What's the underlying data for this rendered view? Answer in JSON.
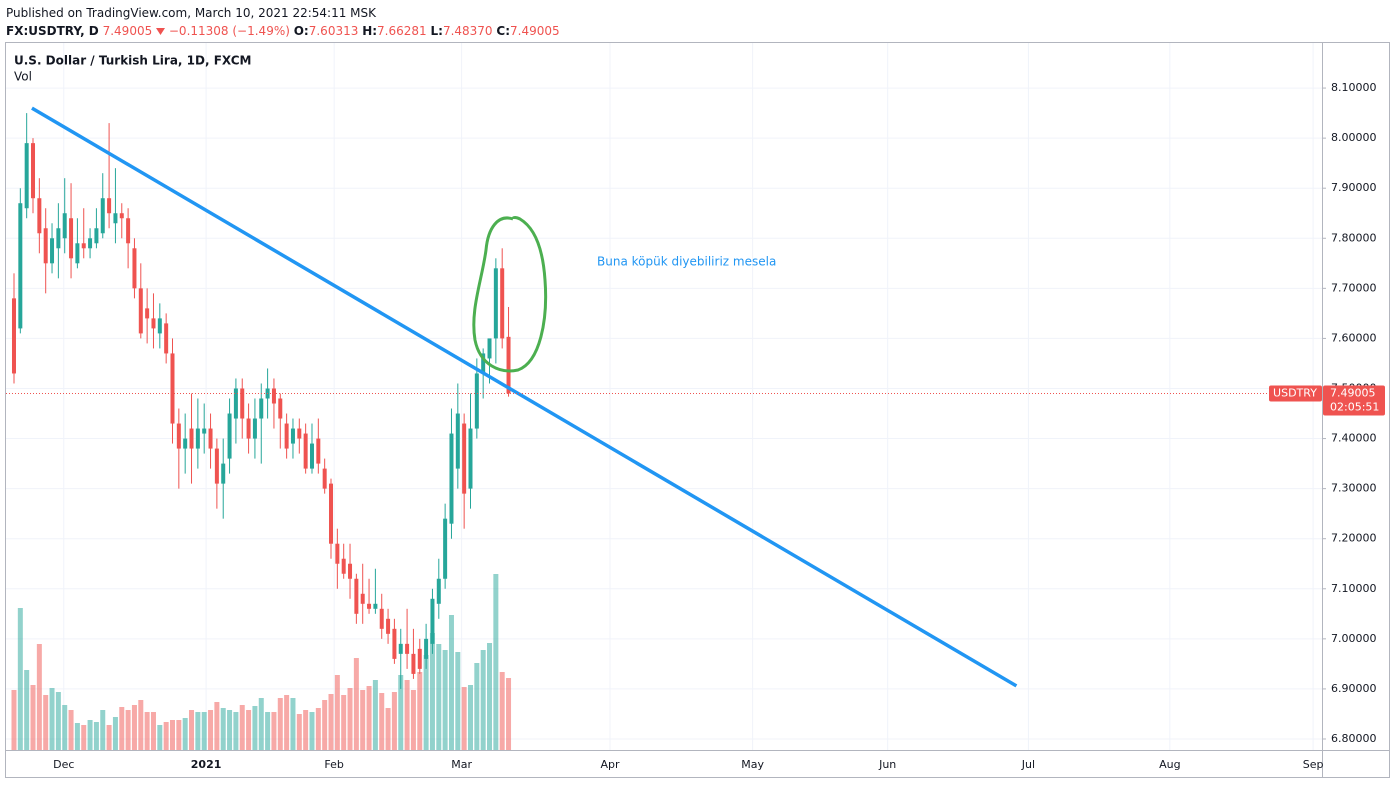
{
  "header": {
    "published": "Published on TradingView.com, March 10, 2021 22:54:11 MSK",
    "symbol": "FX:USDTRY, D",
    "price": "7.49005",
    "change": "−0.11308 (−1.49%)",
    "ohlc": [
      {
        "key": "O:",
        "value": "7.60313"
      },
      {
        "key": "H:",
        "value": "7.66281"
      },
      {
        "key": "L:",
        "value": "7.48370"
      },
      {
        "key": "C:",
        "value": "7.49005"
      }
    ]
  },
  "chart_data": {
    "type": "candlestick",
    "title": "U.S. Dollar / Turkish Lira, 1D, FXCM",
    "subtitle": "Vol",
    "annotation": "Buna köpük diyebiliriz mesela",
    "symbol_label": "USDTRY",
    "countdown": "02:05:51",
    "up_color": "#26a69a",
    "down_color": "#ef5350",
    "open": [
      7.68,
      7.62,
      7.86,
      7.99,
      7.88,
      7.82,
      7.75,
      7.78,
      7.8,
      7.84,
      7.75,
      7.79,
      7.78,
      7.79,
      7.81,
      7.88,
      7.83,
      7.85,
      7.84,
      7.78,
      7.7,
      7.66,
      7.64,
      7.61,
      7.63,
      7.57,
      7.43,
      7.38,
      7.42,
      7.38,
      7.41,
      7.42,
      7.38,
      7.31,
      7.36,
      7.44,
      7.5,
      7.44,
      7.4,
      7.44,
      7.48,
      7.5,
      7.48,
      7.43,
      7.39,
      7.42,
      7.41,
      7.34,
      7.4,
      7.34,
      7.31,
      7.19,
      7.16,
      7.15,
      7.12,
      7.09,
      7.07,
      7.06,
      7.06,
      7.04,
      7.02,
      6.97,
      6.99,
      6.97,
      6.98,
      6.96,
      6.99,
      7.07,
      7.12,
      7.23,
      7.34,
      7.43,
      7.3,
      7.42,
      7.53,
      7.56,
      7.6,
      7.74,
      7.60313
    ],
    "high": [
      7.73,
      7.9,
      8.05,
      8.0,
      7.92,
      7.86,
      7.83,
      7.87,
      7.92,
      7.91,
      7.84,
      7.86,
      7.82,
      7.86,
      7.93,
      8.03,
      7.94,
      7.87,
      7.86,
      7.8,
      7.75,
      7.7,
      7.69,
      7.67,
      7.65,
      7.6,
      7.46,
      7.45,
      7.49,
      7.48,
      7.47,
      7.45,
      7.4,
      7.4,
      7.48,
      7.52,
      7.52,
      7.47,
      7.48,
      7.51,
      7.54,
      7.52,
      7.49,
      7.45,
      7.44,
      7.44,
      7.43,
      7.43,
      7.44,
      7.36,
      7.32,
      7.22,
      7.19,
      7.19,
      7.13,
      7.15,
      7.12,
      7.14,
      7.09,
      7.06,
      7.04,
      7.02,
      7.06,
      7.02,
      7.0,
      7.03,
      7.1,
      7.16,
      7.27,
      7.46,
      7.51,
      7.45,
      7.49,
      7.56,
      7.58,
      7.59,
      7.76,
      7.78,
      7.66281
    ],
    "low": [
      7.51,
      7.61,
      7.84,
      7.85,
      7.77,
      7.69,
      7.73,
      7.72,
      7.77,
      7.72,
      7.74,
      7.76,
      7.76,
      7.78,
      7.8,
      7.82,
      7.79,
      7.8,
      7.74,
      7.68,
      7.6,
      7.59,
      7.58,
      7.58,
      7.55,
      7.39,
      7.3,
      7.33,
      7.31,
      7.34,
      7.37,
      7.34,
      7.26,
      7.24,
      7.33,
      7.39,
      7.4,
      7.37,
      7.36,
      7.35,
      7.44,
      7.42,
      7.38,
      7.36,
      7.36,
      7.37,
      7.33,
      7.33,
      7.33,
      7.29,
      7.16,
      7.1,
      7.12,
      7.08,
      7.03,
      7.03,
      7.05,
      7.05,
      7.0,
      6.99,
      6.95,
      6.9,
      6.94,
      6.92,
      6.93,
      6.94,
      6.97,
      7.04,
      7.1,
      7.2,
      7.3,
      7.22,
      7.26,
      7.4,
      7.48,
      7.51,
      7.55,
      7.58,
      7.4837
    ],
    "close": [
      7.53,
      7.87,
      7.99,
      7.88,
      7.81,
      7.75,
      7.8,
      7.82,
      7.85,
      7.76,
      7.79,
      7.78,
      7.8,
      7.82,
      7.88,
      7.85,
      7.85,
      7.84,
      7.79,
      7.7,
      7.61,
      7.64,
      7.62,
      7.64,
      7.57,
      7.43,
      7.38,
      7.4,
      7.38,
      7.42,
      7.42,
      7.38,
      7.31,
      7.35,
      7.45,
      7.5,
      7.44,
      7.4,
      7.44,
      7.48,
      7.5,
      7.47,
      7.44,
      7.38,
      7.42,
      7.4,
      7.34,
      7.39,
      7.35,
      7.3,
      7.19,
      7.15,
      7.13,
      7.12,
      7.05,
      7.07,
      7.06,
      7.07,
      7.02,
      7.01,
      6.96,
      6.99,
      6.97,
      6.93,
      6.94,
      7.0,
      7.08,
      7.12,
      7.24,
      7.41,
      7.45,
      7.29,
      7.42,
      7.53,
      7.57,
      7.6,
      7.74,
      7.6,
      7.49005
    ],
    "volume": [
      60,
      142,
      80,
      65,
      106,
      55,
      62,
      58,
      45,
      40,
      27,
      25,
      30,
      28,
      40,
      25,
      33,
      43,
      40,
      45,
      50,
      38,
      38,
      25,
      28,
      30,
      30,
      32,
      40,
      38,
      38,
      40,
      48,
      42,
      40,
      38,
      45,
      40,
      44,
      52,
      38,
      38,
      52,
      55,
      52,
      36,
      40,
      38,
      42,
      50,
      56,
      75,
      55,
      62,
      92,
      60,
      64,
      70,
      57,
      42,
      58,
      75,
      70,
      60,
      78,
      95,
      117,
      106,
      100,
      135,
      98,
      63,
      65,
      87,
      100,
      107,
      176,
      78,
      72
    ],
    "volume_ylim": [
      0,
      707
    ],
    "xlim": [
      -1.26,
      206.3
    ],
    "ylim": [
      6.778,
      8.19
    ],
    "xticks": [
      {
        "value": 7.85,
        "label": "Dec"
      },
      {
        "value": 30.3,
        "label": "2021"
      },
      {
        "value": 50.5,
        "label": "Feb"
      },
      {
        "value": 70.6,
        "label": "Mar"
      },
      {
        "value": 94.0,
        "label": "Apr"
      },
      {
        "value": 116.5,
        "label": "May"
      },
      {
        "value": 137.8,
        "label": "Jun"
      },
      {
        "value": 160.0,
        "label": "Jul"
      },
      {
        "value": 182.3,
        "label": "Aug"
      },
      {
        "value": 204.9,
        "label": "Sep"
      }
    ],
    "yticks": [
      {
        "value": 6.8,
        "label": "6.80000"
      },
      {
        "value": 6.9,
        "label": "6.90000"
      },
      {
        "value": 7.0,
        "label": "7.00000"
      },
      {
        "value": 7.1,
        "label": "7.10000"
      },
      {
        "value": 7.2,
        "label": "7.20000"
      },
      {
        "value": 7.3,
        "label": "7.30000"
      },
      {
        "value": 7.4,
        "label": "7.40000"
      },
      {
        "value": 7.5,
        "label": "7.50000"
      },
      {
        "value": 7.6,
        "label": "7.60000"
      },
      {
        "value": 7.7,
        "label": "7.70000"
      },
      {
        "value": 7.8,
        "label": "7.80000"
      },
      {
        "value": 7.9,
        "label": "7.90000"
      },
      {
        "value": 8.0,
        "label": "8.00000"
      },
      {
        "value": 8.1,
        "label": "8.10000"
      }
    ],
    "grid": true,
    "trend_line": {
      "x": [
        2.83,
        158.1
      ],
      "y": [
        8.06,
        6.906
      ],
      "color": "#2196f3"
    }
  }
}
